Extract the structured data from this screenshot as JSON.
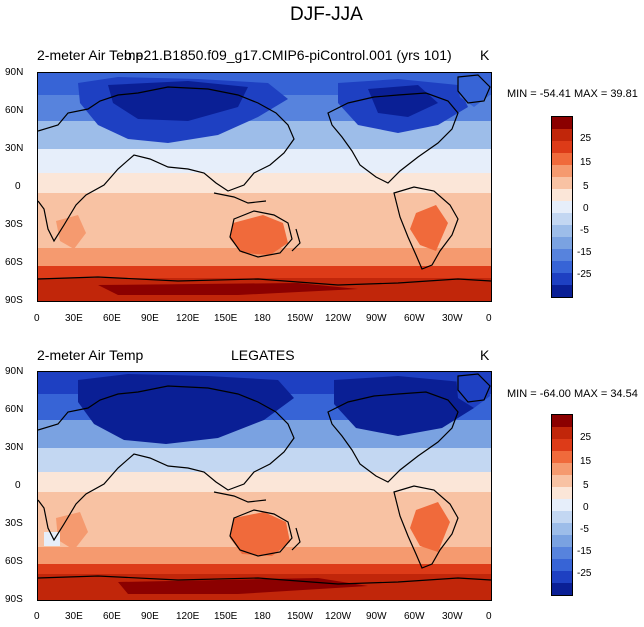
{
  "figure": {
    "title": "DJF-JJA",
    "panels": [
      {
        "left_label": "2-meter Air Temp",
        "center_label": "b.e21.B1850.f09_g17.CMIP6-piControl.001 (yrs 101)",
        "units": "K",
        "min_max": "MIN = -54.41 MAX =  39.81"
      },
      {
        "left_label": "2-meter Air Temp",
        "center_label": "LEGATES",
        "units": "K",
        "min_max": "MIN = -64.00 MAX =  34.54"
      }
    ],
    "lat_ticks": [
      "90N",
      "60N",
      "30N",
      "0",
      "30S",
      "60S",
      "90S"
    ],
    "lon_ticks": [
      "0",
      "30E",
      "60E",
      "90E",
      "120E",
      "150E",
      "180",
      "150W",
      "120W",
      "90W",
      "60W",
      "30W",
      "0"
    ],
    "colorbar_labels": [
      "25",
      "15",
      "5",
      "0",
      "-5",
      "-15",
      "-25"
    ],
    "colorbar_colors": [
      "#8b0000",
      "#c1260a",
      "#dd3b18",
      "#f06a3b",
      "#f59a6f",
      "#f8c2a3",
      "#fbe6d8",
      "#e6eefa",
      "#c3d7f2",
      "#9dbde9",
      "#7aa2e1",
      "#5783dd",
      "#3764d6",
      "#1e40c2",
      "#0a1f95"
    ]
  },
  "chart_data": [
    {
      "type": "heatmap",
      "title": "DJF-JJA",
      "left_label": "2-meter Air Temp",
      "center_label": "b.e21.B1850.f09_g17.CMIP6-piControl.001 (yrs 101)",
      "units": "K",
      "min": -54.41,
      "max": 39.81,
      "xlim": [
        0,
        360
      ],
      "ylim": [
        -90,
        90
      ],
      "contour_levels": [
        -30,
        -25,
        -20,
        -15,
        -10,
        -5,
        -2,
        2,
        5,
        10,
        15,
        20,
        25,
        30
      ]
    },
    {
      "type": "heatmap",
      "title": "DJF-JJA",
      "left_label": "2-meter Air Temp",
      "center_label": "LEGATES",
      "units": "K",
      "min": -64.0,
      "max": 34.54,
      "xlim": [
        0,
        360
      ],
      "ylim": [
        -90,
        90
      ],
      "contour_levels": [
        -30,
        -25,
        -20,
        -15,
        -10,
        -5,
        -2,
        2,
        5,
        10,
        15,
        20,
        25,
        30
      ]
    }
  ]
}
